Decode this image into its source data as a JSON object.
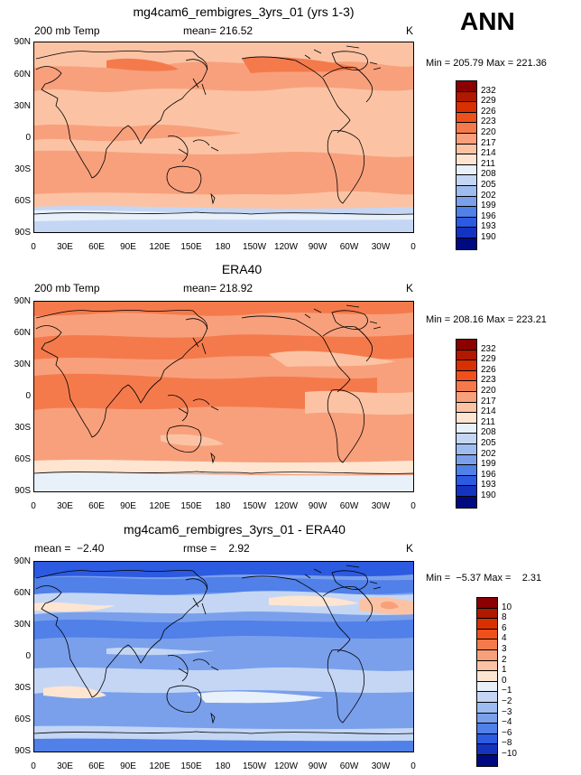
{
  "season": "ANN",
  "panels": [
    {
      "title": "mg4cam6_rembigres_3yrs_01 (yrs 1-3)",
      "left_label": "200 mb Temp",
      "center_label": "mean= 216.52",
      "right_label": "K",
      "minmax": "Min = 205.79 Max = 221.36",
      "type": "abs"
    },
    {
      "title": "ERA40",
      "left_label": "200 mb Temp",
      "center_label": "mean= 218.92",
      "right_label": "K",
      "minmax": "Min = 208.16 Max = 223.21",
      "type": "abs"
    },
    {
      "title": "mg4cam6_rembigres_3yrs_01 - ERA40",
      "left_label": "mean =  −2.40",
      "center_label": "rmse =    2.92",
      "right_label": "K",
      "minmax": "Min =  −5.37 Max =    2.31",
      "type": "diff"
    }
  ],
  "lat_labels": [
    "90N",
    "60N",
    "30N",
    "0",
    "30S",
    "60S",
    "90S"
  ],
  "lon_labels": [
    "0",
    "30E",
    "60E",
    "90E",
    "120E",
    "150E",
    "180",
    "150W",
    "120W",
    "90W",
    "60W",
    "30W",
    "0"
  ],
  "colorbars": {
    "abs": {
      "labels": [
        "232",
        "229",
        "226",
        "223",
        "220",
        "217",
        "214",
        "211",
        "208",
        "205",
        "202",
        "199",
        "196",
        "193",
        "190"
      ],
      "colors": [
        "#8b0000",
        "#b01800",
        "#d83000",
        "#f0501c",
        "#f47a4c",
        "#f8a07c",
        "#fbc3a4",
        "#fde5d2",
        "#e8f0fa",
        "#c4d6f4",
        "#9ebcf0",
        "#7aa0ec",
        "#5080e8",
        "#2c5ae0",
        "#1434c0",
        "#000a80"
      ]
    },
    "diff": {
      "labels": [
        "10",
        "8",
        "6",
        "4",
        "3",
        "2",
        "1",
        "0",
        "−1",
        "−2",
        "−3",
        "−4",
        "−6",
        "−8",
        "−10"
      ],
      "colors": [
        "#8b0000",
        "#b01800",
        "#d83000",
        "#f0501c",
        "#f47a4c",
        "#f8a07c",
        "#fbc3a4",
        "#fde5d2",
        "#e8f0fa",
        "#c4d6f4",
        "#9ebcf0",
        "#7aa0ec",
        "#5080e8",
        "#2c5ae0",
        "#1434c0",
        "#000a80"
      ]
    }
  }
}
